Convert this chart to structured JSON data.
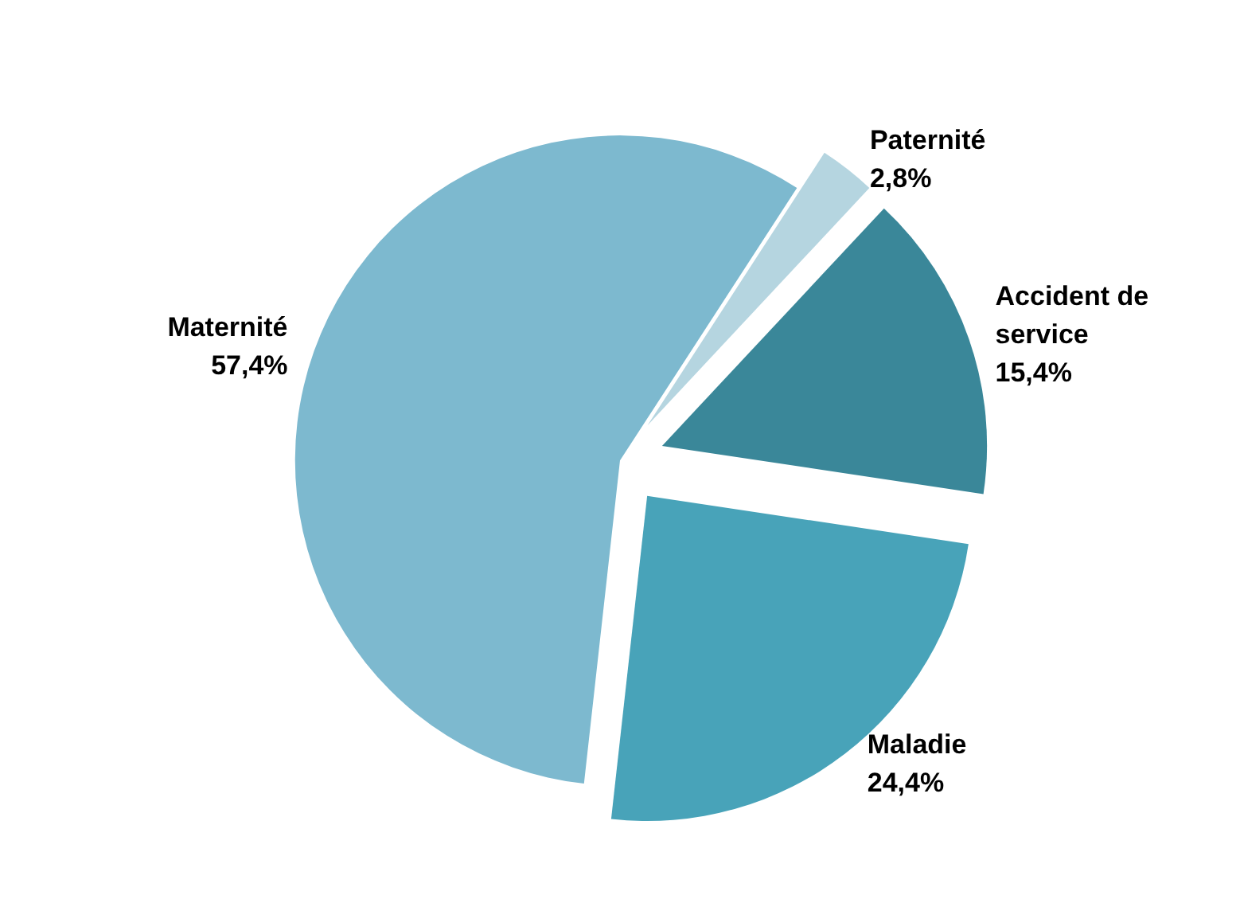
{
  "chart_data": {
    "type": "pie",
    "categories": [
      "Paternité",
      "Accident de service",
      "Maladie",
      "Maternité"
    ],
    "values": [
      2.8,
      15.4,
      24.4,
      57.4
    ],
    "colors": [
      "#b5d5e0",
      "#3a8799",
      "#48a3b9",
      "#7db9cf"
    ],
    "value_labels": [
      "2,8%",
      "15,4%",
      "24,4%",
      "57,4%"
    ],
    "legend": false
  }
}
